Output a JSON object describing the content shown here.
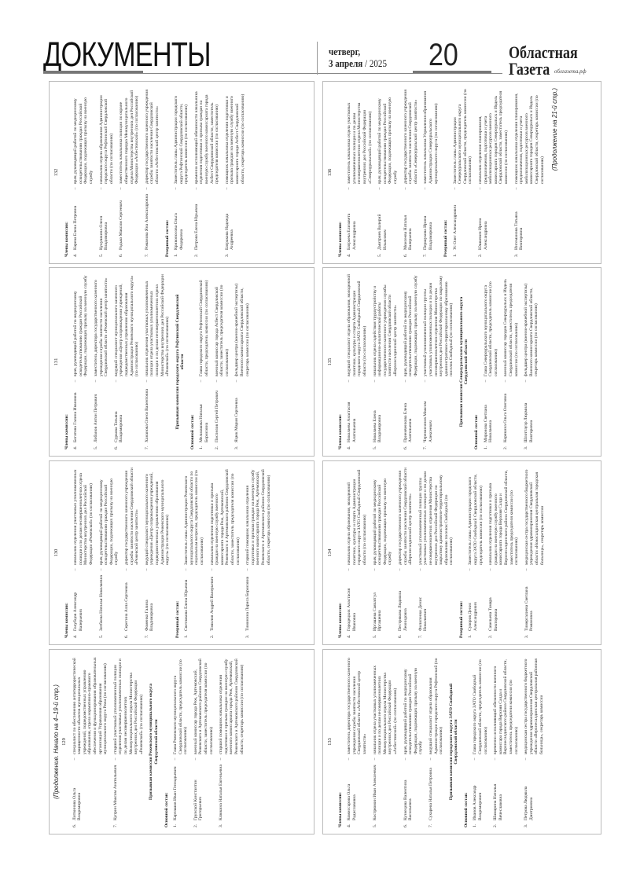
{
  "header": {
    "section_title": "ДОКУМЕНТЫ",
    "weekday": "четверг,",
    "date": "3 апреля",
    "year": "/ 2025",
    "page_number": "20",
    "brand_line1": "Областная",
    "brand_line2": "Газета",
    "brand_url": "облгазета.рф"
  },
  "panels": [
    {
      "number": "132",
      "blocks": [
        {
          "type": "section",
          "text": "Члены комиссии:"
        },
        {
          "type": "item",
          "num": "4.",
          "name": "Карева Елена Петровна",
          "desc": "врач, руководящий работой по медицинскому освидетельствованию граждан Российской Федерации, подлежащих призыву на военную службу"
        },
        {
          "type": "item",
          "num": "5.",
          "name": "Кукушкина Олеся Владимировна",
          "desc": "начальник отдела образования Администрации городского округа Рефтинский Свердловской области (по согласованию)"
        },
        {
          "type": "item",
          "num": "6.",
          "name": "Радько Максим Сергеевич",
          "desc": "заместитель начальника полиции по охране общественного порядка Межмуниципального отдела Министерства внутренних дел Российской Федерации «Асбестовский» (по согласованию)"
        },
        {
          "type": "item",
          "num": "7.",
          "name": "Романова Яна Александровна",
          "desc": "директор государственного казенного учреждения службы занятости населения Свердловской области «Асбестовский центр занятости»"
        },
        {
          "type": "section",
          "text": "Резервный состав:"
        },
        {
          "type": "item",
          "num": "1.",
          "name": "Кривоносова Ольга Федоровна",
          "desc": "Заместитель главы Администрации городского округа Рефтинский Свердловской области, председатель комиссии (по согласованию)"
        },
        {
          "type": "item",
          "num": "2.",
          "name": "Петрова Елена Юрьевна",
          "desc": "временно исполняющий обязанности начальника отделения подготовки и призыва граждан на военную службу военного комиссариата города Асбест Свердловской области, заместитель председателя комиссии (по согласованию)"
        },
        {
          "type": "item",
          "num": "3.",
          "name": "Батракова Надежда Андреевна",
          "desc": "помощник начальника отделения подготовки и призыва граждан на военную службу военного комиссариата города Асбест Свердловской области, секретарь комиссии (по согласованию)"
        }
      ]
    },
    {
      "number": "131",
      "blocks": [
        {
          "type": "section",
          "text": "Члены комиссии:"
        },
        {
          "type": "item",
          "num": "4.",
          "name": "Богатова Галина Ивановна",
          "desc": "врач, руководящий работой по медицинскому освидетельствованию граждан Российской Федерации, подлежащих призыву на военную службу"
        },
        {
          "type": "item",
          "num": "5.",
          "name": "Лобанов Антон Петрович",
          "desc": "заместитель директора государственного казенного учреждения службы занятости населения Свердловской области «Режевской центр занятости»"
        },
        {
          "type": "item",
          "num": "6.",
          "name": "Суркова Татьяна Владимировна",
          "desc": "ведущий специалист муниципального казенного учреждения «Центр сопровождения учреждений, подведомственных управлению образования Администрации Режевского муниципального округа» (по согласованию)"
        },
        {
          "type": "item",
          "num": "7.",
          "name": "Хананова Олеся Валентовна",
          "desc": "начальник отделения участковых уполномоченных полиции отдела участковых уполномоченных полиции и по делам несовершеннолетних отдела Министерства внутренних дел Российской Федерации «Режевской» (по согласованию)"
        },
        {
          "type": "commission",
          "text": "Призывная комиссия городского округа Рефтинский Свердловской области"
        },
        {
          "type": "section",
          "text": "Основной состав:"
        },
        {
          "type": "item",
          "num": "1.",
          "name": "Мельчакова Наталья Борисовна",
          "desc": "Глава городского округа Рефтинский Свердловской области, председатель комиссии (по согласованию)"
        },
        {
          "type": "item",
          "num": "2.",
          "name": "Поспелов Сергей Петрович",
          "desc": "военный комиссар города Асбест Свердловской области, заместитель председателя комиссии (по согласованию)"
        },
        {
          "type": "item",
          "num": "3.",
          "name": "Яцюк Мария Сергеевна",
          "desc": "фельдшер центра (военно-врачебной экспертизы) Военного комиссариата Свердловской области, секретарь комиссии (по согласованию)"
        }
      ]
    },
    {
      "number": "130",
      "blocks": [
        {
          "type": "section",
          "text": "Члены комиссии:"
        },
        {
          "type": "item",
          "num": "4.",
          "name": "Голубцов Александр Валерьевич",
          "desc": "начальник отделения участковых уполномоченных полиции и по делам несовершеннолетних отдела Министерства внутренних дел Российской Федерации «Режевской» (по согласованию)"
        },
        {
          "type": "item",
          "num": "5.",
          "name": "Зотбеева Наталья Николаевна",
          "desc": "врач, руководящий работой по медицинскому освидетельствованию граждан Российской Федерации, подлежащих призыву на военную службу"
        },
        {
          "type": "item",
          "num": "6.",
          "name": "Серегина Алла Сергеевна",
          "desc": "директор государственного казенного учреждения службы занятости населения Свердловской области «Режевской центр занятости»"
        },
        {
          "type": "item",
          "num": "7.",
          "name": "Фоменко Галина Владимировна",
          "desc": "ведущий специалист муниципального казенного учреждения «Центр сопровождения учреждений, подведомственных управлению образования Администрации Режевского муниципального округа» (по согласованию)"
        },
        {
          "type": "section",
          "text": "Резервный состав:"
        },
        {
          "type": "item",
          "num": "1.",
          "name": "Светлакова Елена Юрьевна",
          "desc": "Заместитель главы Администрации Режевского муниципального округа Свердловской области по социальным вопросам, председатель комиссии (по согласованию)"
        },
        {
          "type": "item",
          "num": "2.",
          "name": "Томилов Андрей Валерьевич",
          "desc": "начальник отделения подготовки и призыва граждан на военную службу военного комиссариата города Реж, Артемовский, Режевского и Артемовского районов Свердловской области, заместитель председателя комиссии (по согласованию)"
        },
        {
          "type": "item",
          "num": "3.",
          "name": "Тимонина Лариса Борисовна",
          "desc": "старший помощник начальника отделения подготовки и призыва граждан на военную службу военного комиссариата города Реж, Артемовский, Режевского и Артемовского районов Свердловской области, секретарь комиссии (по согласованию)"
        }
      ]
    },
    {
      "number": "129",
      "continuation": "(Продолжение. Начало на 4–19-й стр.)",
      "blocks": [
        {
          "type": "item",
          "num": "6.",
          "name": "Литвинова Ольга Владимировна",
          "desc": "специалист по обеспечению антитеррористической защищенности объектов муниципальных учреждений, подведомственных управлению образования, отдела нормативно-правового обеспечения и функционирования образовательных организаций Управления образования муниципального округа Режа (по согласованию)"
        },
        {
          "type": "item",
          "num": "7.",
          "name": "Куприн Максим Анатольевич",
          "desc": "старший участковый уполномоченный полиции отделения участковых уполномоченных полиции и по делам несовершеннолетних Межмуниципального отдела Министерства внутренних дел Российской Федерации «Режевской» (по согласованию)"
        },
        {
          "type": "commission",
          "text": "Призывная комиссия Режевского муниципального округа Свердловской области"
        },
        {
          "type": "section",
          "text": "Основной состав:"
        },
        {
          "type": "item",
          "num": "1.",
          "name": "Карташов Иван Геннадьевич",
          "desc": "Глава Режевского муниципального округа Свердловской области, председатель комиссии (по согласованию)"
        },
        {
          "type": "item",
          "num": "2.",
          "name": "Грунской Константин Григорьевич",
          "desc": "военный комиссар города Реж, Артемовский, Режевского и Артемовского районов Свердловской области, заместитель председателя комиссии (по согласованию)"
        },
        {
          "type": "item",
          "num": "3.",
          "name": "Клюкина Наталья Евгеньевна",
          "desc": "старший помощник начальника отделения подготовки и призыва граждан на военную службу военного комиссариата города Реж, Артемовский, Режевского и Артемовского районов Свердловской области, секретарь комиссии (по согласованию)"
        }
      ]
    },
    {
      "number": "136",
      "footer": "(Продолжение на 21-й стр.)",
      "blocks": [
        {
          "type": "section",
          "text": "Члены комиссии:"
        },
        {
          "type": "item",
          "num": "4.",
          "name": "Батраева Елизавета Александровна",
          "desc": "заместитель начальника отдела участковых уполномоченных полиции и по делам несовершеннолетних отдела Министерства внутренних дел Российской Федерации «Североуральский» (по согласованию)"
        },
        {
          "type": "item",
          "num": "5.",
          "name": "Дмитриев Валерий Ильясович",
          "desc": "врач, руководящий работой по медицинскому освидетельствованию граждан Российской Федерации, подлежащих призыву на военную службу"
        },
        {
          "type": "item",
          "num": "6.",
          "name": "Моисеева Наталья Валерьевна",
          "desc": "директор государственного казенного учреждения службы занятости населения Свердловской области «Североуральский центр занятости»"
        },
        {
          "type": "item",
          "num": "7.",
          "name": "Першукова Ирина Владимировна",
          "desc": "заместитель начальника Управления образования Администрации Североуральского муниципального округа (по согласованию)"
        },
        {
          "type": "section",
          "text": "Резервный состав:"
        },
        {
          "type": "item",
          "num": "1.",
          "name": "Ус Олег Александрович",
          "desc": "Заместитель главы Администрации Североуральского муниципального округа Свердловской области, председатель комиссии (по согласованию)"
        },
        {
          "type": "item",
          "num": "2.",
          "name": "Юшкевич Ирина Александровна",
          "desc": "начальник отделения планирования, предназначения, подготовки и учета мобилизационных ресурсов военного комиссариата городов Североуральск и Ивдель Свердловской области, заместитель председателя комиссии (по согласованию)"
        },
        {
          "type": "item",
          "num": "3.",
          "name": "Ингеманова Татьяна Викторовна",
          "desc": "помощник начальника отделения планирования, предназначения, подготовки и учета мобилизационных ресурсов военного комиссариата городов Североуральск и Ивдель Свердловской области, секретарь комиссии (по согласованию)"
        }
      ]
    },
    {
      "number": "135",
      "blocks": [
        {
          "type": "section",
          "text": "Члены комиссии:"
        },
        {
          "type": "item",
          "num": "4.",
          "name": "Николаева Анастасия Анатольевна",
          "desc": "ведущий специалист отдела образования, молодежной политики, культуры и спорта Администрации городского округа ЗАТО Свободный Свердловской области (по согласованию)"
        },
        {
          "type": "item",
          "num": "5.",
          "name": "Николаева Елена Владимировна",
          "desc": "начальник отдела содействия трудоустройству и информационно-аналитической работы государственного казенного учреждения службы занятости населения Свердловской области «Верхнесалдинский центр занятости»"
        },
        {
          "type": "item",
          "num": "6.",
          "name": "Приемченкова Елена Анатольевна",
          "desc": "врач, руководящий работой по медицинскому освидетельствованию граждан Российской Федерации, подлежащих призыву на военную службу"
        },
        {
          "type": "item",
          "num": "7.",
          "name": "Черемисинов Максим Алексеевич",
          "desc": "участковый уполномоченный полиции группы участковых уполномоченных полиции и по делам несовершеннолетних отделения Министерства внутренних дел Российской Федерации по закрытому административно-территориальному образованию поселок Свободный (по согласованию)"
        },
        {
          "type": "commission",
          "text": "Призывная комиссия Североуральского муниципального округа Свердловской области"
        },
        {
          "type": "section",
          "text": "Основной состав:"
        },
        {
          "type": "item",
          "num": "1.",
          "name": "Миронова Светлана Николаевна",
          "desc": "Глава Североуральского муниципального округа Свердловской области, председатель комиссии (по согласованию)"
        },
        {
          "type": "item",
          "num": "2.",
          "name": "Корякина Ольга Олеговна",
          "desc": "военный комиссар городов Североуральск и Ивдель Свердловской области, заместитель председателя комиссии (по согласованию)"
        },
        {
          "type": "item",
          "num": "3.",
          "name": "Шпоттауэр Людмила Викторовна",
          "desc": "фельдшер центра (военно-врачебной экспертизы) Военного комиссариата Свердловской области, секретарь комиссии (по согласованию)"
        }
      ]
    },
    {
      "number": "134",
      "blocks": [
        {
          "type": "section",
          "text": "Члены комиссии:"
        },
        {
          "type": "item",
          "num": "4.",
          "name": "Городецких Анастасия Ивановна",
          "desc": "начальник отдела образования, молодежной политики, культуры и спорта Администрации городского округа ЗАТО Свободный Свердловской области (по согласованию)"
        },
        {
          "type": "item",
          "num": "5.",
          "name": "Иргашева Саяхатгул Иргашевна",
          "desc": "врач, руководящий работой по медицинскому освидетельствованию граждан Российской Федерации, подлежащих призыву на военную службу"
        },
        {
          "type": "item",
          "num": "6.",
          "name": "Пестрякова Людмила Леонидовна",
          "desc": "директор государственного казенного учреждения службы занятости населения Свердловской области «Верхнесалдинский центр занятости»"
        },
        {
          "type": "item",
          "num": "7.",
          "name": "Филипенко Денис Николаевич",
          "desc": "участковый уполномоченный полиции группы участковых уполномоченных полиции и по делам несовершеннолетних отделения Министерства внутренних дел Российской Федерации по закрытому административно-территориальному образованию поселок Свободный (по согласованию)"
        },
        {
          "type": "section",
          "text": "Резервный состав:"
        },
        {
          "type": "item",
          "num": "1.",
          "name": "Суворов Денис Александрович",
          "desc": "Заместитель главы Администрации городского округа ЗАТО Свободный Свердловской области, председатель комиссии (по согласованию)"
        },
        {
          "type": "item",
          "num": "2.",
          "name": "Савельева Тамара Викторовна",
          "desc": "начальник отделения подготовки и призыва граждан на военную службу военного комиссариата города Верхняя Салда и Верхнесалдинского района Свердловской области, заместитель председателя комиссии (по согласованию)"
        },
        {
          "type": "item",
          "num": "3.",
          "name": "Тимергалиева Светлана Романовна",
          "desc": "медицинская сестра государственного бюджетного учреждения здравоохранения Свердловской области «Новосалдинская центральная городская больница», секретарь комиссии"
        }
      ]
    },
    {
      "number": "133",
      "blocks": [
        {
          "type": "section",
          "text": "Члены комиссии:"
        },
        {
          "type": "item",
          "num": "4.",
          "name": "Комиссарова Ольга Радиславовна",
          "desc": "заместитель директора государственного казенного учреждения службы занятости населения Свердловской области «Асбестовский центр занятости»"
        },
        {
          "type": "item",
          "num": "5.",
          "name": "Кострюмин Иван Алексеевич",
          "desc": "начальник отдела участковых уполномоченных полиции и по делам несовершеннолетних Межмуниципального отдела Министерства внутренних дел Российской Федерации «Асбестовский» (по согласованию)"
        },
        {
          "type": "item",
          "num": "6.",
          "name": "Кузнецова Валентина Васильевна",
          "desc": "врач, руководящий работой по медицинскому освидетельствованию граждан Российской Федерации, подлежащих призыву на военную службу"
        },
        {
          "type": "item",
          "num": "7.",
          "name": "Сухарева Наталья Петровна",
          "desc": "ведущий специалист отдела образования Администрации городского округа Рефтинский (по согласованию)"
        },
        {
          "type": "commission",
          "text": "Призывная комиссия городского округа ЗАТО Свободный Свердловской области"
        },
        {
          "type": "section",
          "text": "Основной состав:"
        },
        {
          "type": "item",
          "num": "1.",
          "name": "Иванов Александр Владимирович",
          "desc": "Глава городского округа ЗАТО Свободный Свердловской области, председатель комиссии (по согласованию)"
        },
        {
          "type": "item",
          "num": "2.",
          "name": "Шамарина Наталья Вячеславовна",
          "desc": "временно исполняющий обязанности военного комиссара города Верхняя Салда и Верхнесалдинского района Свердловской области, заместитель председателя комиссии (по согласованию)"
        },
        {
          "type": "item",
          "num": "3.",
          "name": "Петрова Людмила Дмитриевна",
          "desc": "медицинская сестра государственного бюджетного учреждения здравоохранения Свердловской области «Верхнесалдинская центральная районная больница», секретарь комиссии"
        }
      ]
    }
  ]
}
